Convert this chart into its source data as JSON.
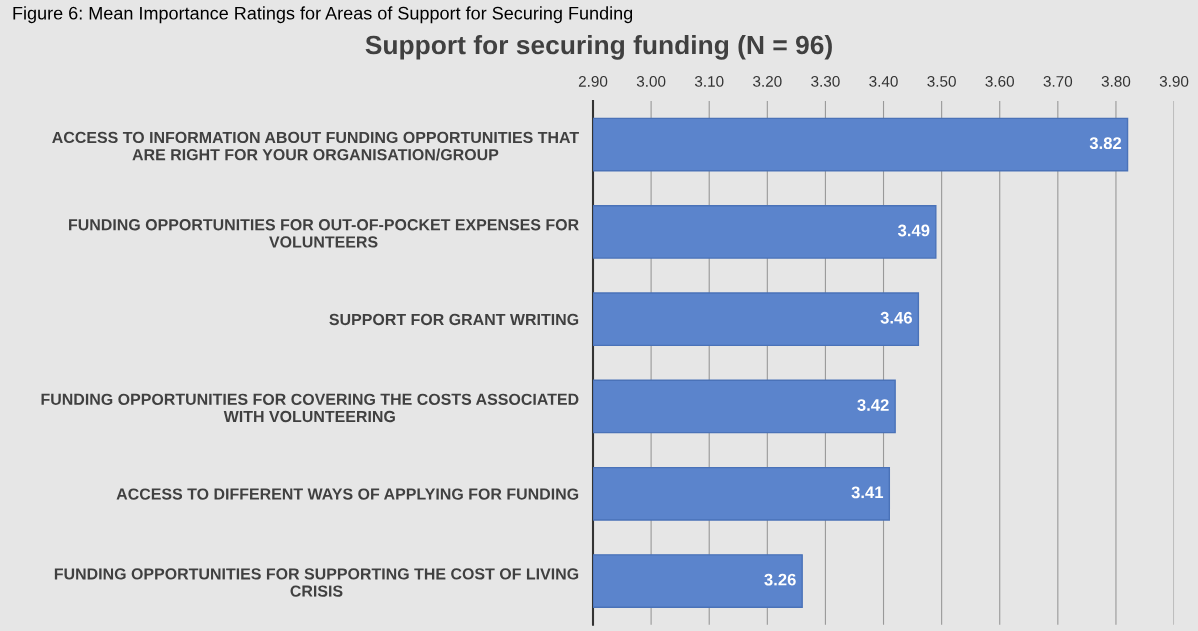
{
  "chart_data": {
    "type": "bar",
    "orientation": "horizontal",
    "title": "Support for securing funding (N = 96)",
    "annotations": [
      "Figure 6: Mean Importance Ratings for Areas of Support for Securing Funding"
    ],
    "categories": [
      "ACCESS TO INFORMATION ABOUT FUNDING OPPORTUNITIES THAT ARE RIGHT FOR YOUR ORGANISATION/GROUP",
      "FUNDING OPPORTUNITIES FOR OUT-OF-POCKET EXPENSES FOR VOLUNTEERS",
      "SUPPORT FOR GRANT WRITING",
      "FUNDING OPPORTUNITIES FOR COVERING THE COSTS ASSOCIATED WITH VOLUNTEERING",
      "ACCESS TO DIFFERENT WAYS OF APPLYING FOR FUNDING",
      "FUNDING OPPORTUNITIES FOR SUPPORTING THE COST OF LIVING CRISIS"
    ],
    "values": [
      3.82,
      3.49,
      3.46,
      3.42,
      3.41,
      3.26
    ],
    "color": "#5b84cc",
    "xlim": [
      2.9,
      3.9
    ],
    "xticks": [
      {
        "value": 2.9,
        "label": "2.90"
      },
      {
        "value": 3.0,
        "label": "3.00"
      },
      {
        "value": 3.1,
        "label": "3.10"
      },
      {
        "value": 3.2,
        "label": "3.20"
      },
      {
        "value": 3.3,
        "label": "3.30"
      },
      {
        "value": 3.4,
        "label": "3.40"
      },
      {
        "value": 3.5,
        "label": "3.50"
      },
      {
        "value": 3.6,
        "label": "3.60"
      },
      {
        "value": 3.7,
        "label": "3.70"
      },
      {
        "value": 3.8,
        "label": "3.80"
      },
      {
        "value": 3.9,
        "label": "3.90"
      }
    ],
    "grid": "x",
    "data_labels": true
  }
}
